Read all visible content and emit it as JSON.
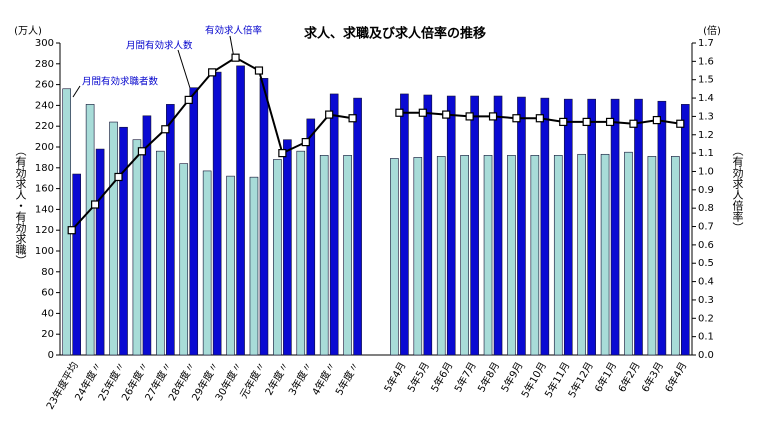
{
  "chart_data": {
    "type": "bar-line",
    "title": "求人、求職及び求人倍率の推移",
    "y_unit": "(万人)",
    "y2_unit": "(倍)",
    "ylabel": "（有効求人・有効求職）",
    "y2label": "（有効求人倍率）",
    "categories": [
      "23年度平均",
      "24年度〃",
      "25年度〃",
      "26年度〃",
      "27年度〃",
      "28年度〃",
      "29年度〃",
      "30年度〃",
      "元年度〃",
      "2年度〃",
      "3年度〃",
      "4年度〃",
      "5年度〃",
      null,
      "5年4月",
      "5年5月",
      "5年6月",
      "5年7月",
      "5年8月",
      "5年9月",
      "5年10月",
      "5年11月",
      "5年12月",
      "6年1月",
      "6年2月",
      "6年3月",
      "6年4月"
    ],
    "series": [
      {
        "name": "月間有効求職者数",
        "color": "#a8dcd8",
        "values": [
          256,
          241,
          224,
          207,
          196,
          184,
          177,
          172,
          171,
          188,
          196,
          192,
          192,
          null,
          189,
          190,
          191,
          192,
          192,
          192,
          192,
          192,
          193,
          193,
          195,
          191,
          191
        ]
      },
      {
        "name": "月間有効求人数",
        "color": "#0a0ad2",
        "values": [
          174,
          198,
          219,
          230,
          241,
          257,
          272,
          278,
          266,
          207,
          227,
          251,
          247,
          null,
          251,
          250,
          249,
          249,
          249,
          248,
          247,
          246,
          246,
          246,
          246,
          244,
          241
        ]
      },
      {
        "name": "有効求人倍率",
        "color": "#000000",
        "axis": "y2",
        "values": [
          0.68,
          0.82,
          0.97,
          1.11,
          1.23,
          1.39,
          1.54,
          1.62,
          1.55,
          1.1,
          1.16,
          1.31,
          1.29,
          null,
          1.32,
          1.32,
          1.31,
          1.3,
          1.3,
          1.29,
          1.29,
          1.27,
          1.27,
          1.27,
          1.26,
          1.28,
          1.26
        ]
      }
    ],
    "ylim": [
      0,
      300
    ],
    "yticks": [
      0,
      20,
      40,
      60,
      80,
      100,
      120,
      140,
      160,
      180,
      200,
      220,
      240,
      260,
      280,
      300
    ],
    "y2lim": [
      0,
      1.7
    ],
    "y2ticks": [
      {
        "value": 0,
        "label": "0.0"
      },
      0.1,
      0.2,
      0.3,
      0.4,
      0.5,
      0.6,
      0.7,
      0.8,
      0.9,
      {
        "value": 1,
        "label": "1.0"
      },
      1.1,
      1.2,
      1.3,
      1.4,
      1.5,
      1.6,
      1.7
    ]
  }
}
